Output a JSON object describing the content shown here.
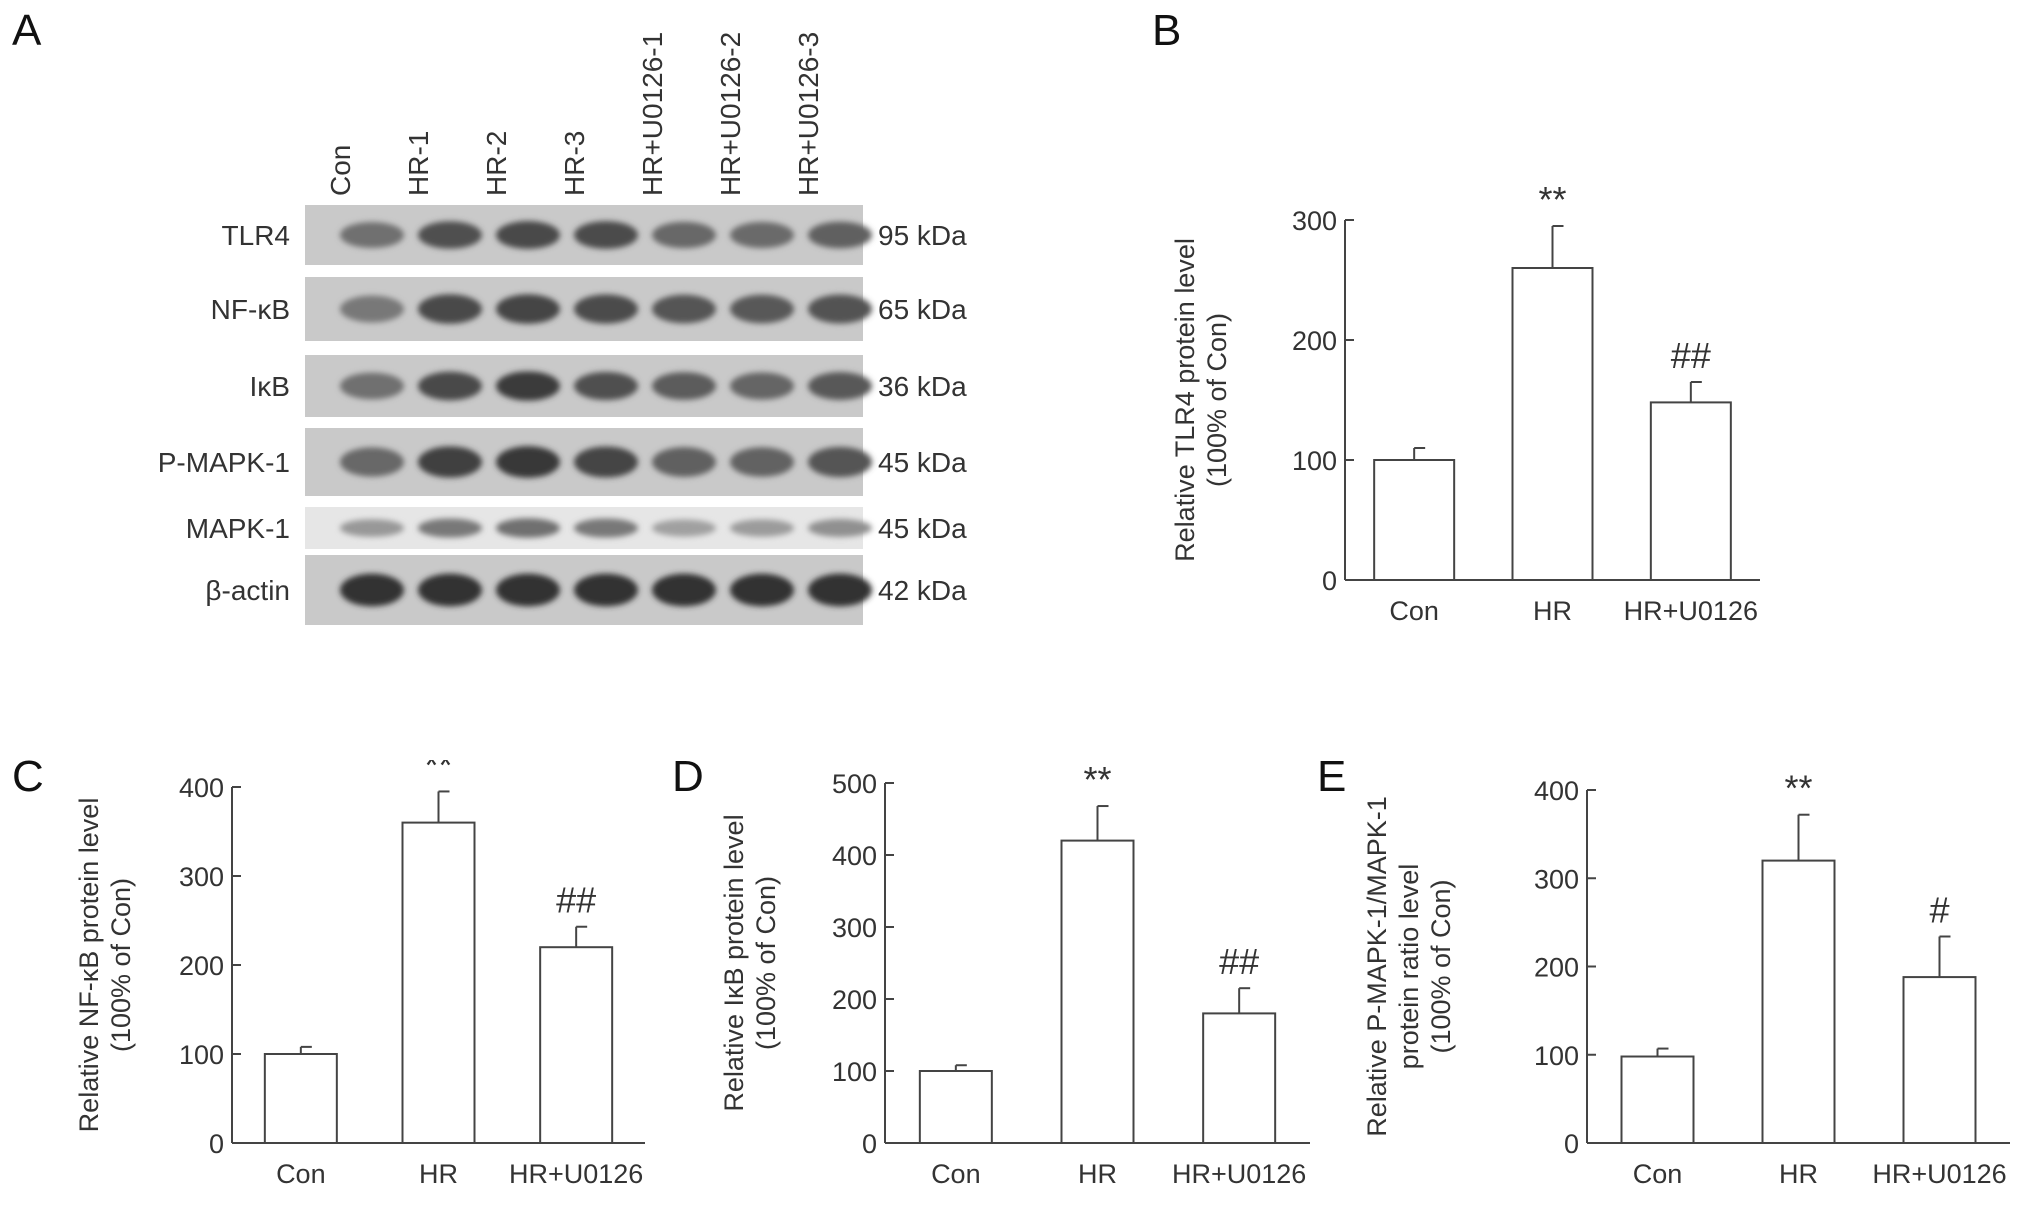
{
  "panel_letters": [
    "A",
    "B",
    "C",
    "D",
    "E"
  ],
  "blot": {
    "lane_labels": [
      "Con",
      "HR-1",
      "HR-2",
      "HR-3",
      "HR+U0126-1",
      "HR+U0126-2",
      "HR+U0126-3"
    ],
    "rows": [
      {
        "protein": "TLR4",
        "size": "95 kDa",
        "intensity": [
          0.55,
          0.75,
          0.8,
          0.78,
          0.6,
          0.58,
          0.65
        ]
      },
      {
        "protein": "NF-κB",
        "size": "65 kDa",
        "intensity": [
          0.5,
          0.8,
          0.82,
          0.78,
          0.72,
          0.7,
          0.74
        ]
      },
      {
        "protein": "IκB",
        "size": "36 kDa",
        "intensity": [
          0.55,
          0.8,
          0.88,
          0.75,
          0.68,
          0.62,
          0.7
        ]
      },
      {
        "protein": "P-MAPK-1",
        "size": "45 kDa",
        "intensity": [
          0.6,
          0.85,
          0.9,
          0.82,
          0.65,
          0.64,
          0.72
        ]
      },
      {
        "protein": "MAPK-1",
        "size": "45 kDa",
        "intensity": [
          0.3,
          0.5,
          0.55,
          0.5,
          0.25,
          0.28,
          0.35
        ]
      },
      {
        "protein": "β-actin",
        "size": "42 kDa",
        "intensity": [
          0.95,
          0.95,
          0.95,
          0.95,
          0.95,
          0.95,
          0.95
        ]
      }
    ]
  },
  "chart_data": [
    {
      "panel": "B",
      "type": "bar",
      "categories": [
        "Con",
        "HR",
        "HR+U0126"
      ],
      "values": [
        100,
        260,
        148
      ],
      "errors": [
        10,
        35,
        17
      ],
      "annotations": [
        "",
        "**",
        "##"
      ],
      "ylabel": [
        "Relative TLR4 protein level",
        "(100% of Con)"
      ],
      "ylim": [
        0,
        300
      ],
      "yticks": [
        0,
        100,
        200,
        300
      ]
    },
    {
      "panel": "C",
      "type": "bar",
      "categories": [
        "Con",
        "HR",
        "HR+U0126"
      ],
      "values": [
        100,
        360,
        220
      ],
      "errors": [
        8,
        35,
        23
      ],
      "annotations": [
        "",
        "**",
        "##"
      ],
      "ylabel": [
        "Relative NF-κB protein level",
        "(100% of Con)"
      ],
      "ylim": [
        0,
        400
      ],
      "yticks": [
        0,
        100,
        200,
        300,
        400
      ]
    },
    {
      "panel": "D",
      "type": "bar",
      "categories": [
        "Con",
        "HR",
        "HR+U0126"
      ],
      "values": [
        100,
        420,
        180
      ],
      "errors": [
        8,
        48,
        35
      ],
      "annotations": [
        "",
        "**",
        "##"
      ],
      "ylabel": [
        "Relative IκB protein level",
        "(100% of Con)"
      ],
      "ylim": [
        0,
        500
      ],
      "yticks": [
        0,
        100,
        200,
        300,
        400,
        500
      ]
    },
    {
      "panel": "E",
      "type": "bar",
      "categories": [
        "Con",
        "HR",
        "HR+U0126"
      ],
      "values": [
        98,
        320,
        188
      ],
      "errors": [
        9,
        52,
        46
      ],
      "annotations": [
        "",
        "**",
        "#"
      ],
      "ylabel": [
        "Relative P-MAPK-1/MAPK-1",
        "protein ratio level",
        "(100% of Con)"
      ],
      "ylim": [
        0,
        400
      ],
      "yticks": [
        0,
        100,
        200,
        300,
        400
      ]
    }
  ]
}
